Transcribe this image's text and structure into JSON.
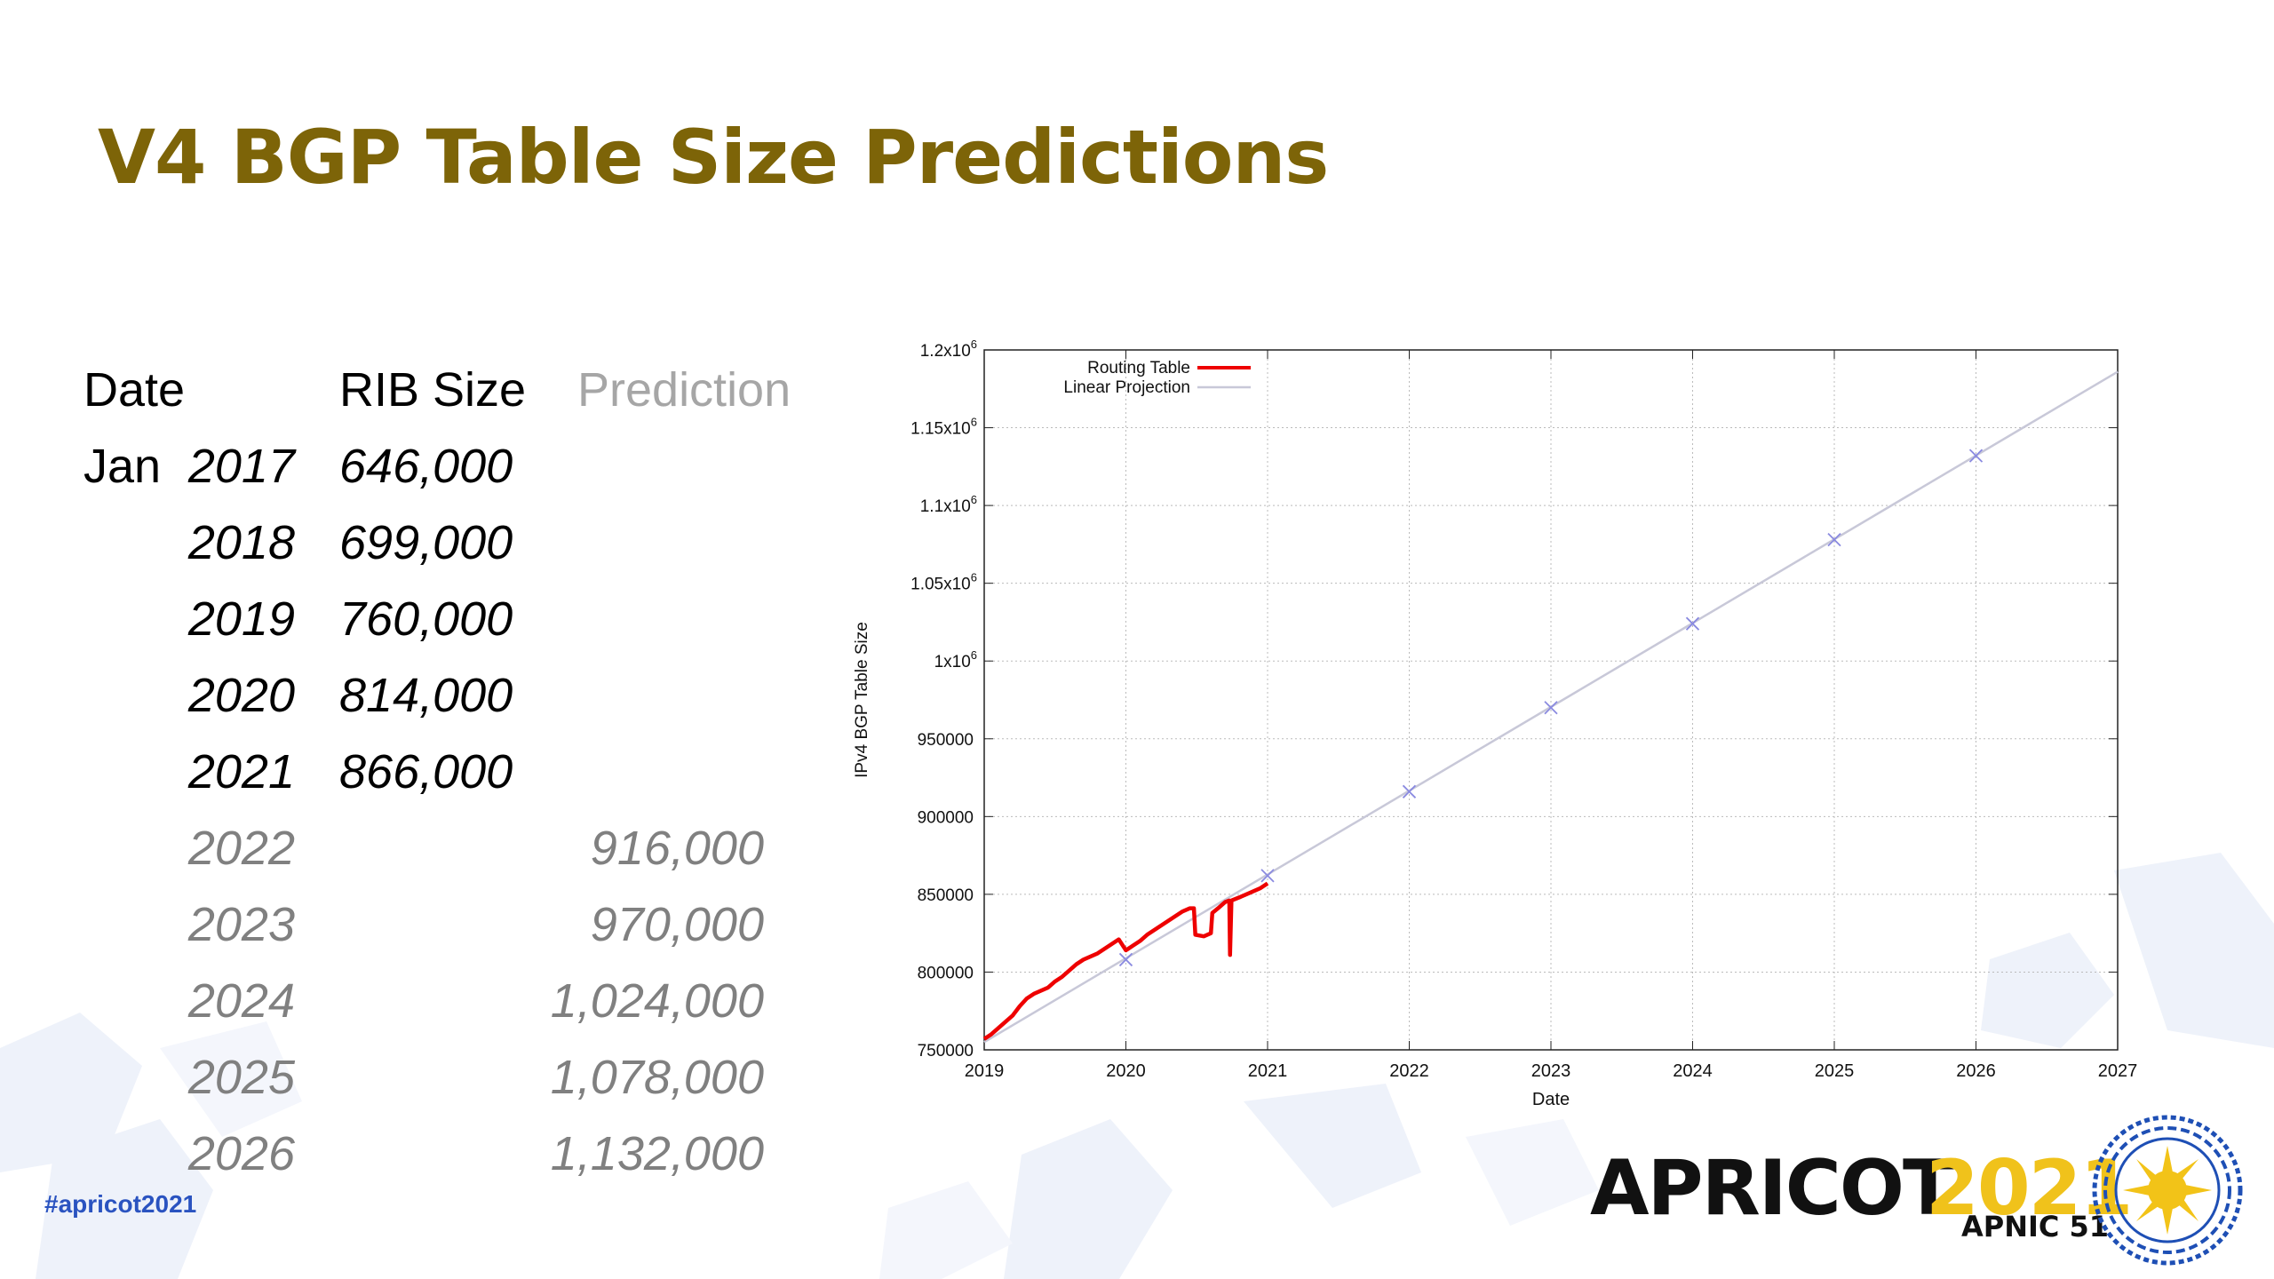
{
  "slide": {
    "title": "V4 BGP Table Size Predictions",
    "hashtag": "#apricot2021"
  },
  "table": {
    "headers": {
      "date": "Date",
      "rib": "RIB Size",
      "prediction": "Prediction"
    },
    "rows": [
      {
        "prefix": "Jan",
        "year": "2017",
        "rib": "646,000",
        "prediction": ""
      },
      {
        "prefix": "",
        "year": "2018",
        "rib": "699,000",
        "prediction": ""
      },
      {
        "prefix": "",
        "year": "2019",
        "rib": "760,000",
        "prediction": ""
      },
      {
        "prefix": "",
        "year": "2020",
        "rib": "814,000",
        "prediction": ""
      },
      {
        "prefix": "",
        "year": "2021",
        "rib": "866,000",
        "prediction": ""
      },
      {
        "prefix": "",
        "year": "2022",
        "rib": "",
        "prediction": "916,000"
      },
      {
        "prefix": "",
        "year": "2023",
        "rib": "",
        "prediction": "970,000"
      },
      {
        "prefix": "",
        "year": "2024",
        "rib": "",
        "prediction": "1,024,000"
      },
      {
        "prefix": "",
        "year": "2025",
        "rib": "",
        "prediction": "1,078,000"
      },
      {
        "prefix": "",
        "year": "2026",
        "rib": "",
        "prediction": "1,132,000"
      }
    ]
  },
  "chart_data": {
    "type": "line",
    "title": "",
    "xlabel": "Date",
    "ylabel": "IPv4 BGP Table Size",
    "xlim": [
      2019,
      2027
    ],
    "ylim": [
      750000,
      1200000
    ],
    "grid": true,
    "legend_position": "top-left",
    "x_ticks": [
      "2019",
      "2020",
      "2021",
      "2022",
      "2023",
      "2024",
      "2025",
      "2026",
      "2027"
    ],
    "y_ticks": [
      {
        "value": 750000,
        "label": "750000"
      },
      {
        "value": 800000,
        "label": "800000"
      },
      {
        "value": 850000,
        "label": "850000"
      },
      {
        "value": 900000,
        "label": "900000"
      },
      {
        "value": 950000,
        "label": "950000"
      },
      {
        "value": 1000000,
        "label": "1x10",
        "exp": "6"
      },
      {
        "value": 1050000,
        "label": "1.05x10",
        "exp": "6"
      },
      {
        "value": 1100000,
        "label": "1.1x10",
        "exp": "6"
      },
      {
        "value": 1150000,
        "label": "1.15x10",
        "exp": "6"
      },
      {
        "value": 1200000,
        "label": "1.2x10",
        "exp": "6"
      }
    ],
    "series": [
      {
        "name": "Routing Table",
        "color": "#ee0000",
        "points": [
          [
            2019.0,
            757000
          ],
          [
            2019.05,
            760000
          ],
          [
            2019.1,
            764000
          ],
          [
            2019.15,
            768000
          ],
          [
            2019.2,
            772000
          ],
          [
            2019.25,
            778000
          ],
          [
            2019.3,
            783000
          ],
          [
            2019.35,
            786000
          ],
          [
            2019.4,
            788000
          ],
          [
            2019.45,
            790000
          ],
          [
            2019.5,
            794000
          ],
          [
            2019.55,
            797000
          ],
          [
            2019.6,
            801000
          ],
          [
            2019.65,
            805000
          ],
          [
            2019.7,
            808000
          ],
          [
            2019.75,
            810000
          ],
          [
            2019.8,
            812000
          ],
          [
            2019.85,
            815000
          ],
          [
            2019.9,
            818000
          ],
          [
            2019.95,
            821000
          ],
          [
            2020.0,
            814000
          ],
          [
            2020.05,
            817000
          ],
          [
            2020.1,
            820000
          ],
          [
            2020.15,
            824000
          ],
          [
            2020.2,
            827000
          ],
          [
            2020.25,
            830000
          ],
          [
            2020.3,
            833000
          ],
          [
            2020.35,
            836000
          ],
          [
            2020.4,
            839000
          ],
          [
            2020.45,
            841000
          ],
          [
            2020.48,
            841000
          ],
          [
            2020.49,
            824000
          ],
          [
            2020.55,
            823000
          ],
          [
            2020.6,
            825000
          ],
          [
            2020.61,
            838000
          ],
          [
            2020.65,
            841000
          ],
          [
            2020.7,
            845000
          ],
          [
            2020.73,
            846000
          ],
          [
            2020.735,
            811000
          ],
          [
            2020.745,
            846000
          ],
          [
            2020.8,
            848000
          ],
          [
            2020.85,
            850000
          ],
          [
            2020.9,
            852000
          ],
          [
            2020.95,
            854000
          ],
          [
            2021.0,
            857000
          ]
        ]
      },
      {
        "name": "Linear Projection",
        "color": "#c8c8d8",
        "points": [
          [
            2019.0,
            755000
          ],
          [
            2027.0,
            1186000
          ]
        ]
      }
    ],
    "markers": {
      "color": "#8a8ae0",
      "points": [
        [
          2020,
          808000
        ],
        [
          2021,
          862000
        ],
        [
          2022,
          916000
        ],
        [
          2023,
          970000
        ],
        [
          2024,
          1024000
        ],
        [
          2025,
          1078000
        ],
        [
          2026,
          1132000
        ]
      ]
    }
  }
}
